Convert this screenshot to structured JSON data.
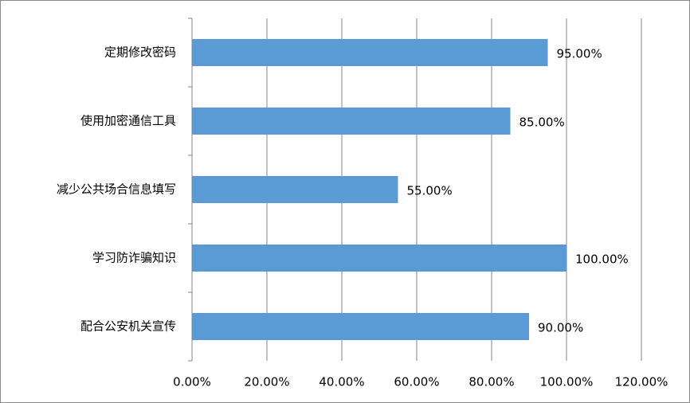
{
  "chart_data": {
    "type": "bar",
    "orientation": "horizontal",
    "categories": [
      "定期修改密码",
      "使用加密通信工具",
      "减少公共场合信息填写",
      "学习防诈骗知识",
      "配合公安机关宣传"
    ],
    "values": [
      95,
      85,
      55,
      100,
      90
    ],
    "value_labels": [
      "95.00%",
      "85.00%",
      "55.00%",
      "100.00%",
      "90.00%"
    ],
    "color": "#5b9bd5",
    "xlim": [
      0,
      120
    ],
    "xticks": [
      {
        "value": 0,
        "label": "0.00%"
      },
      {
        "value": 20,
        "label": "20.00%"
      },
      {
        "value": 40,
        "label": "40.00%"
      },
      {
        "value": 60,
        "label": "60.00%"
      },
      {
        "value": 80,
        "label": "80.00%"
      },
      {
        "value": 100,
        "label": "100.00%"
      },
      {
        "value": 120,
        "label": "120.00%"
      }
    ],
    "grid": true
  }
}
